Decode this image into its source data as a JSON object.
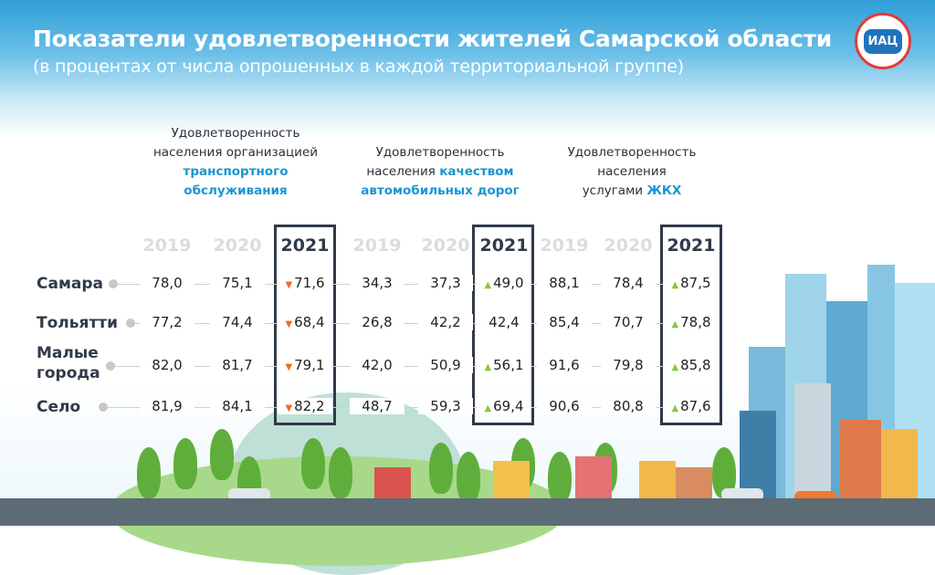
{
  "header": {
    "title": "Показатели удовлетворенности жителей Самарской области",
    "subtitle": "(в процентах от числа опрошенных в каждой территориальной группе)",
    "logo_text": "ИАЦ"
  },
  "groups": [
    {
      "lines": [
        "Удовлетворенность",
        "населения организацией"
      ],
      "highlight": [
        "транспортного",
        "обслуживания"
      ]
    },
    {
      "lines": [
        "Удовлетворенность",
        "населения "
      ],
      "highlight_inline": "качеством",
      "highlight": [
        "автомобильных дорог"
      ]
    },
    {
      "lines": [
        "Удовлетворенность",
        "населения",
        "услугами "
      ],
      "highlight_inline": "ЖКХ"
    }
  ],
  "years": [
    "2019",
    "2020",
    "2021"
  ],
  "rows": [
    {
      "label": "Самара",
      "values": [
        [
          "78,0",
          "75,1",
          "71,6"
        ],
        [
          "34,3",
          "37,3",
          "49,0"
        ],
        [
          "88,1",
          "78,4",
          "87,5"
        ]
      ],
      "trend": [
        "down",
        "up",
        "up"
      ]
    },
    {
      "label": "Тольятти",
      "values": [
        [
          "77,2",
          "74,4",
          "68,4"
        ],
        [
          "26,8",
          "42,2",
          "42,4"
        ],
        [
          "85,4",
          "70,7",
          "78,8"
        ]
      ],
      "trend": [
        "down",
        "none",
        "up"
      ]
    },
    {
      "label": "Малые города",
      "values": [
        [
          "82,0",
          "81,7",
          "79,1"
        ],
        [
          "42,0",
          "50,9",
          "56,1"
        ],
        [
          "91,6",
          "79,8",
          "85,8"
        ]
      ],
      "trend": [
        "down",
        "up",
        "up"
      ]
    },
    {
      "label": "Село",
      "values": [
        [
          "81,9",
          "84,1",
          "82,2"
        ],
        [
          "48,7",
          "59,3",
          "69,4"
        ],
        [
          "90,6",
          "80,8",
          "87,6"
        ]
      ],
      "trend": [
        "down",
        "up",
        "up"
      ]
    }
  ],
  "colors": {
    "accent": "#1b95d2",
    "up": "#8cc63f",
    "down": "#ef6c1a",
    "box": "#2f3a4a"
  }
}
